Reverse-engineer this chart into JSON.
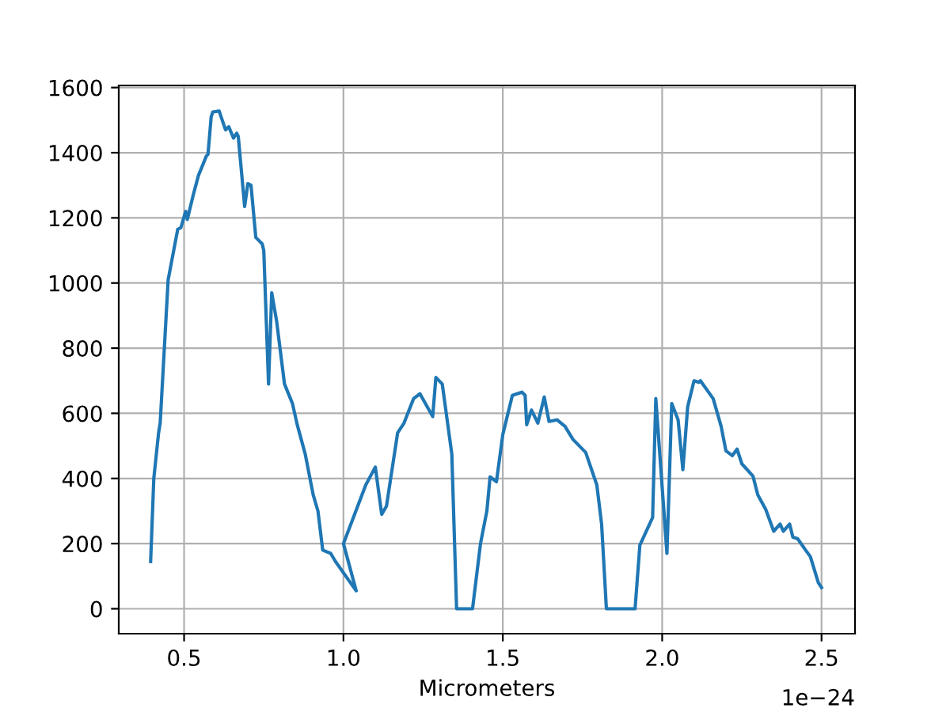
{
  "chart_data": {
    "type": "line",
    "xlabel": "Micrometers",
    "annotations": [
      "1e−24"
    ],
    "x": [
      0.395,
      0.405,
      0.42,
      0.425,
      0.45,
      0.48,
      0.49,
      0.505,
      0.51,
      0.53,
      0.545,
      0.57,
      0.575,
      0.585,
      0.59,
      0.61,
      0.63,
      0.64,
      0.655,
      0.665,
      0.67,
      0.69,
      0.7,
      0.71,
      0.725,
      0.745,
      0.75,
      0.765,
      0.775,
      0.79,
      0.815,
      0.84,
      0.855,
      0.88,
      0.905,
      0.92,
      0.935,
      0.96,
      0.975,
      1.04,
      1.0,
      1.07,
      1.1,
      1.12,
      1.135,
      1.17,
      1.19,
      1.22,
      1.24,
      1.28,
      1.29,
      1.31,
      1.34,
      1.355,
      1.405,
      1.43,
      1.45,
      1.46,
      1.48,
      1.5,
      1.53,
      1.56,
      1.57,
      1.575,
      1.59,
      1.61,
      1.63,
      1.645,
      1.67,
      1.695,
      1.72,
      1.76,
      1.795,
      1.81,
      1.825,
      1.915,
      1.93,
      1.97,
      1.98,
      2.015,
      2.03,
      2.05,
      2.065,
      2.08,
      2.1,
      2.115,
      2.12,
      2.16,
      2.185,
      2.2,
      2.22,
      2.235,
      2.25,
      2.285,
      2.3,
      2.325,
      2.35,
      2.37,
      2.38,
      2.4,
      2.41,
      2.425,
      2.45,
      2.465,
      2.49,
      2.5
    ],
    "series": [
      {
        "color": "#1f77b4",
        "values": [
          145,
          400,
          540,
          570,
          1010,
          1165,
          1170,
          1220,
          1195,
          1275,
          1330,
          1390,
          1395,
          1510,
          1525,
          1528,
          1470,
          1480,
          1445,
          1460,
          1450,
          1235,
          1305,
          1300,
          1140,
          1120,
          1100,
          690,
          970,
          885,
          690,
          630,
          565,
          475,
          350,
          300,
          180,
          170,
          145,
          55,
          200,
          380,
          435,
          290,
          315,
          540,
          570,
          645,
          660,
          590,
          710,
          690,
          475,
          0,
          0,
          200,
          300,
          405,
          390,
          535,
          655,
          665,
          655,
          565,
          610,
          570,
          650,
          575,
          580,
          560,
          520,
          480,
          380,
          260,
          0,
          0,
          195,
          280,
          645,
          170,
          630,
          580,
          427,
          620,
          700,
          695,
          700,
          645,
          560,
          485,
          470,
          490,
          445,
          407,
          350,
          305,
          238,
          260,
          238,
          260,
          220,
          215,
          180,
          160,
          80,
          65
        ]
      }
    ],
    "xlim": [
      0.295,
      2.605
    ],
    "ylim": [
      -76.5,
      1606.5
    ],
    "xticks": [
      {
        "value": 0.5,
        "label": "0.5"
      },
      {
        "value": 1.0,
        "label": "1.0"
      },
      {
        "value": 1.5,
        "label": "1.5"
      },
      {
        "value": 2.0,
        "label": "2.0"
      },
      {
        "value": 2.5,
        "label": "2.5"
      }
    ],
    "yticks": [
      0,
      200,
      400,
      600,
      800,
      1000,
      1200,
      1400,
      1600
    ],
    "grid": true
  }
}
